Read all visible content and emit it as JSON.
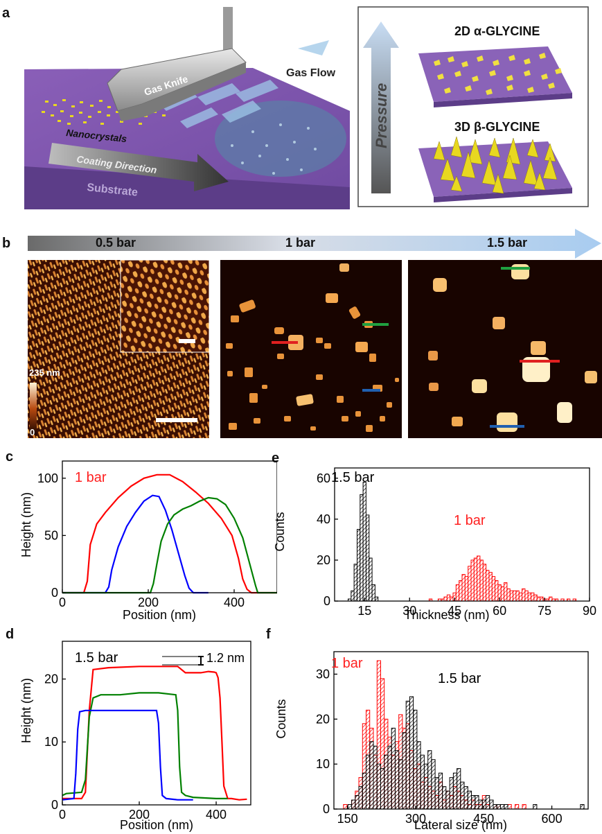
{
  "panel_labels": {
    "a": "a",
    "b": "b",
    "c": "c",
    "d": "d",
    "e": "e",
    "f": "f"
  },
  "panel_a": {
    "schematic_labels": [
      "Gas Knife",
      "Gas Flow",
      "Nanocrystals",
      "Coating Direction",
      "Substrate"
    ],
    "right_box": {
      "label_2d": "2D α-GLYCINE",
      "label_3d": "3D β-GLYCINE",
      "axis_label": "Pressure"
    }
  },
  "panel_b": {
    "pressures": [
      "0.5 bar",
      "1 bar",
      "1.5 bar"
    ],
    "colorbar": {
      "max_label": "235 nm",
      "min_label": "0"
    },
    "colors": {
      "red": "#e02020",
      "green": "#20a040",
      "blue": "#2060b0"
    }
  },
  "chart_data": [
    {
      "id": "c",
      "type": "line",
      "annotation": "1 bar",
      "xlabel": "Position (nm)",
      "ylabel": "Height (nm)",
      "xlim": [
        0,
        500
      ],
      "ylim": [
        0,
        115
      ],
      "xticks": [
        0,
        200,
        400
      ],
      "yticks": [
        0,
        50,
        100
      ],
      "series": [
        {
          "color": "#ff0000",
          "x": [
            0,
            50,
            58,
            65,
            80,
            100,
            130,
            160,
            190,
            220,
            250,
            280,
            310,
            340,
            370,
            395,
            410,
            420,
            430,
            440,
            500
          ],
          "y": [
            0,
            0,
            10,
            42,
            60,
            70,
            83,
            93,
            100,
            103,
            103,
            97,
            88,
            78,
            65,
            50,
            30,
            12,
            3,
            0,
            0
          ]
        },
        {
          "color": "#0000ff",
          "x": [
            0,
            100,
            108,
            115,
            130,
            150,
            170,
            190,
            210,
            225,
            240,
            255,
            270,
            285,
            295,
            305,
            340
          ],
          "y": [
            0,
            0,
            5,
            20,
            40,
            58,
            70,
            80,
            85,
            84,
            72,
            55,
            35,
            15,
            4,
            0,
            0
          ]
        },
        {
          "color": "#008000",
          "x": [
            0,
            205,
            212,
            220,
            230,
            245,
            260,
            280,
            300,
            320,
            340,
            360,
            380,
            400,
            420,
            440,
            450,
            455,
            500
          ],
          "y": [
            0,
            0,
            8,
            25,
            45,
            60,
            68,
            73,
            76,
            80,
            83,
            82,
            77,
            65,
            48,
            20,
            6,
            0,
            0
          ]
        }
      ]
    },
    {
      "id": "d",
      "type": "line",
      "annotation": "1.5 bar",
      "step_label": "1.2 nm",
      "xlabel": "Position (nm)",
      "ylabel": "Height (nm)",
      "xlim": [
        0,
        490
      ],
      "ylim": [
        0,
        26
      ],
      "xticks": [
        0,
        200,
        400
      ],
      "yticks": [
        0,
        10,
        20
      ],
      "series": [
        {
          "color": "#ff0000",
          "x": [
            0,
            50,
            60,
            70,
            80,
            120,
            200,
            300,
            320,
            360,
            380,
            395,
            400,
            405,
            410,
            415,
            420,
            430,
            440,
            460,
            480
          ],
          "y": [
            1,
            1,
            2,
            15,
            21.5,
            21.8,
            22,
            22,
            21,
            21,
            21.2,
            21.1,
            21,
            20.2,
            17,
            10,
            3,
            1,
            1,
            0.8,
            0.9
          ]
        },
        {
          "color": "#008000",
          "x": [
            0,
            10,
            50,
            60,
            70,
            80,
            100,
            150,
            200,
            250,
            295,
            300,
            305,
            310,
            320,
            340,
            400,
            430
          ],
          "y": [
            1.5,
            1.8,
            2,
            4,
            14,
            17,
            17.5,
            17.5,
            17.8,
            17.8,
            17.5,
            15,
            6,
            2,
            1.5,
            1.2,
            1,
            1
          ]
        },
        {
          "color": "#0000ff",
          "x": [
            0,
            30,
            35,
            40,
            45,
            60,
            100,
            150,
            200,
            245,
            250,
            255,
            260,
            270,
            300,
            340
          ],
          "y": [
            0.8,
            1,
            5,
            12,
            14.8,
            15,
            15,
            15,
            15,
            15,
            13,
            6,
            1.5,
            1,
            0.8,
            0.8
          ]
        }
      ]
    },
    {
      "id": "e",
      "type": "bar",
      "xlabel": "Thickness (nm)",
      "ylabel": "Counts",
      "xlim": [
        5,
        90
      ],
      "ylim": [
        0,
        65
      ],
      "xticks": [
        15,
        30,
        45,
        60,
        75,
        90
      ],
      "yticks": [
        0,
        20,
        40,
        60
      ],
      "bin_width": 1,
      "series": [
        {
          "name": "1.5 bar",
          "color": "#000000",
          "x": [
            10,
            11,
            12,
            13,
            14,
            15,
            16,
            17,
            18,
            19
          ],
          "values": [
            1,
            5,
            18,
            35,
            52,
            58,
            42,
            21,
            8,
            2
          ]
        },
        {
          "name": "1 bar",
          "color": "#ff0000",
          "x": [
            37,
            38,
            39,
            40,
            41,
            42,
            43,
            44,
            45,
            46,
            47,
            48,
            49,
            50,
            51,
            52,
            53,
            54,
            55,
            56,
            57,
            58,
            59,
            60,
            61,
            62,
            63,
            64,
            65,
            66,
            67,
            68,
            69,
            70,
            71,
            72,
            73,
            74,
            75,
            76,
            77,
            78,
            79,
            80,
            81,
            82,
            83,
            84,
            85
          ],
          "values": [
            1,
            0,
            0,
            1,
            1,
            2,
            3,
            2,
            4,
            8,
            10,
            13,
            12,
            17,
            20,
            21,
            22,
            20,
            18,
            15,
            14,
            12,
            10,
            8,
            7,
            9,
            6,
            5,
            5,
            5,
            4,
            6,
            5,
            4,
            4,
            3,
            2,
            2,
            1,
            1,
            2,
            1,
            1,
            0,
            1,
            0,
            1,
            0,
            1
          ]
        }
      ]
    },
    {
      "id": "f",
      "type": "bar",
      "xlabel": "Lateral size (nm)",
      "ylabel": "Counts",
      "xlim": [
        120,
        680
      ],
      "ylim": [
        0,
        35
      ],
      "xticks": [
        150,
        300,
        450,
        600
      ],
      "yticks": [
        0,
        10,
        20,
        30
      ],
      "bin_width": 8,
      "series": [
        {
          "name": "1 bar",
          "color": "#ff0000",
          "x": [
            145,
            155,
            163,
            171,
            179,
            187,
            195,
            203,
            211,
            219,
            227,
            235,
            243,
            251,
            259,
            267,
            275,
            283,
            291,
            299,
            307,
            315,
            323,
            331,
            339,
            347,
            355,
            363,
            371,
            379,
            387,
            395,
            403,
            411,
            419,
            427,
            435,
            443,
            451,
            459,
            467,
            475,
            483,
            491,
            499,
            507,
            515,
            523,
            531,
            539
          ],
          "values": [
            1,
            0,
            2,
            4,
            7,
            19,
            22,
            18,
            12,
            33,
            29,
            20,
            16,
            12,
            15,
            21,
            18,
            19,
            13,
            9,
            10,
            6,
            7,
            5,
            4,
            3,
            6,
            2,
            4,
            3,
            5,
            4,
            3,
            2,
            1,
            2,
            1,
            1,
            3,
            1,
            0,
            1,
            1,
            0,
            0,
            1,
            0,
            1,
            0,
            1
          ]
        },
        {
          "name": "1.5 bar",
          "color": "#000000",
          "x": [
            155,
            163,
            171,
            179,
            187,
            195,
            203,
            211,
            219,
            227,
            235,
            243,
            251,
            259,
            267,
            275,
            283,
            291,
            299,
            307,
            315,
            323,
            331,
            339,
            347,
            355,
            363,
            371,
            379,
            387,
            395,
            403,
            411,
            419,
            427,
            435,
            443,
            451,
            459,
            467,
            475,
            483,
            491,
            499,
            507,
            515,
            523,
            531,
            563,
            667
          ],
          "values": [
            1,
            2,
            3,
            5,
            8,
            12,
            15,
            14,
            10,
            9,
            12,
            14,
            18,
            13,
            11,
            17,
            24,
            25,
            22,
            15,
            12,
            10,
            13,
            11,
            7,
            8,
            5,
            4,
            7,
            8,
            9,
            6,
            5,
            4,
            3,
            3,
            2,
            2,
            3,
            2,
            1,
            1,
            1,
            1,
            0,
            0,
            0,
            0,
            1,
            1
          ]
        }
      ]
    }
  ]
}
